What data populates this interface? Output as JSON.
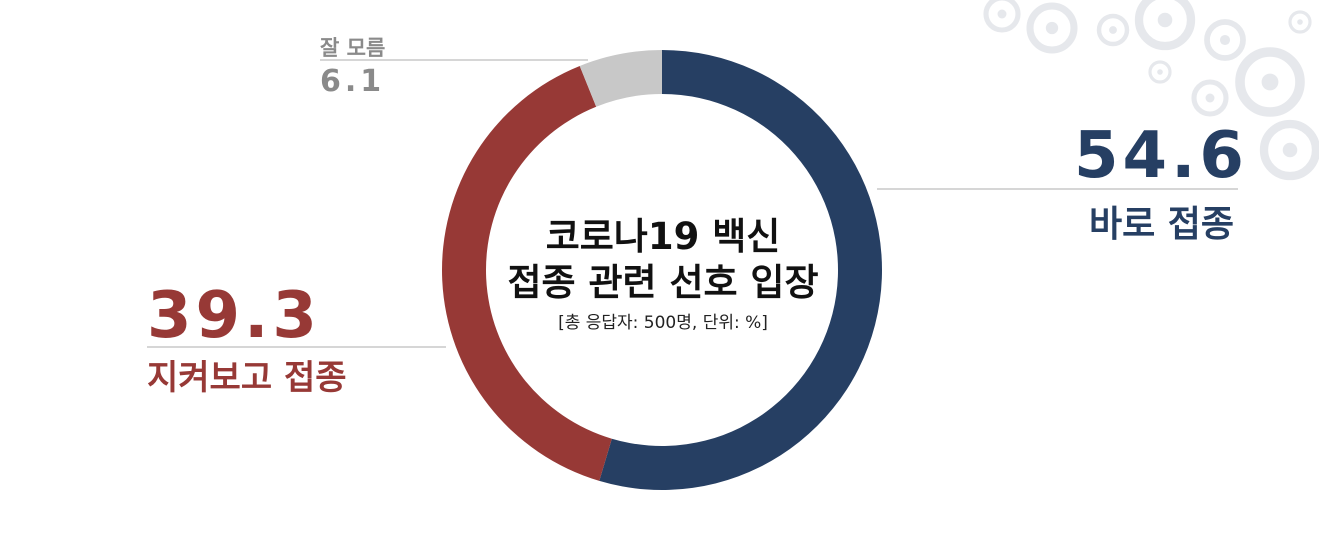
{
  "chart_data": {
    "type": "pie",
    "title_lines": [
      "코로나19 백신",
      "접종 관련 선호 입장"
    ],
    "subtitle": "[총 응답자: 500명, 단위: %]",
    "slices": [
      {
        "label": "바로 접종",
        "display_value": "54.6",
        "value": 54.6,
        "color": "#263f63"
      },
      {
        "label": "지켜보고 접종",
        "display_value": "39.3",
        "value": 39.3,
        "color": "#973936"
      },
      {
        "label": "잘 모름",
        "display_value": "6.1",
        "value": 6.1,
        "color": "#c8c8c8"
      }
    ]
  },
  "colors": {
    "leader_line": "#bdbdbd",
    "gear_decoration": "#e6e8ec",
    "unknown_text": "#8a8a8a"
  },
  "decor": {
    "top_right": "gear-pattern"
  }
}
